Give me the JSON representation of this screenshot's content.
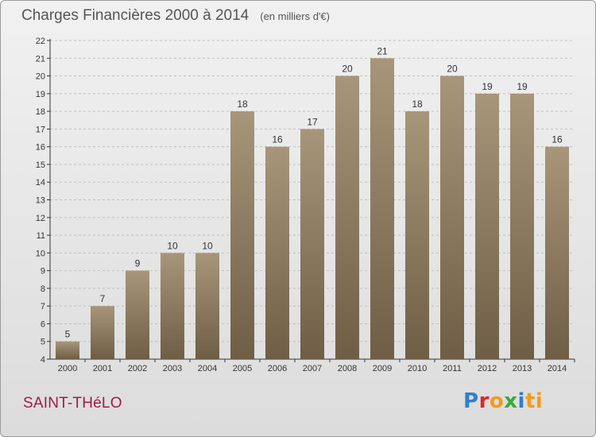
{
  "header": {
    "title": "Charges Financières 2000 à 2014",
    "subtitle": "(en milliers d'€)"
  },
  "footer": {
    "commune": "SAINT-THéLO",
    "logo": "Proxiti"
  },
  "colors": {
    "bar_top": "#a8967a",
    "bar_bottom": "#6e5e45",
    "grid": "#bfbfbf",
    "axis": "#333333",
    "commune": "#a3184a"
  },
  "chart_data": {
    "type": "bar",
    "categories": [
      "2000",
      "2001",
      "2002",
      "2003",
      "2004",
      "2005",
      "2006",
      "2007",
      "2008",
      "2009",
      "2010",
      "2011",
      "2012",
      "2013",
      "2014"
    ],
    "values": [
      5,
      7,
      9,
      10,
      10,
      18,
      16,
      17,
      20,
      21,
      18,
      20,
      19,
      19,
      16
    ],
    "ylim": [
      4,
      22
    ],
    "yticks": [
      4,
      5,
      6,
      7,
      8,
      9,
      10,
      11,
      12,
      13,
      14,
      15,
      16,
      17,
      18,
      19,
      20,
      21,
      22
    ],
    "grid": "horizontal dashed",
    "data_labels": true
  }
}
